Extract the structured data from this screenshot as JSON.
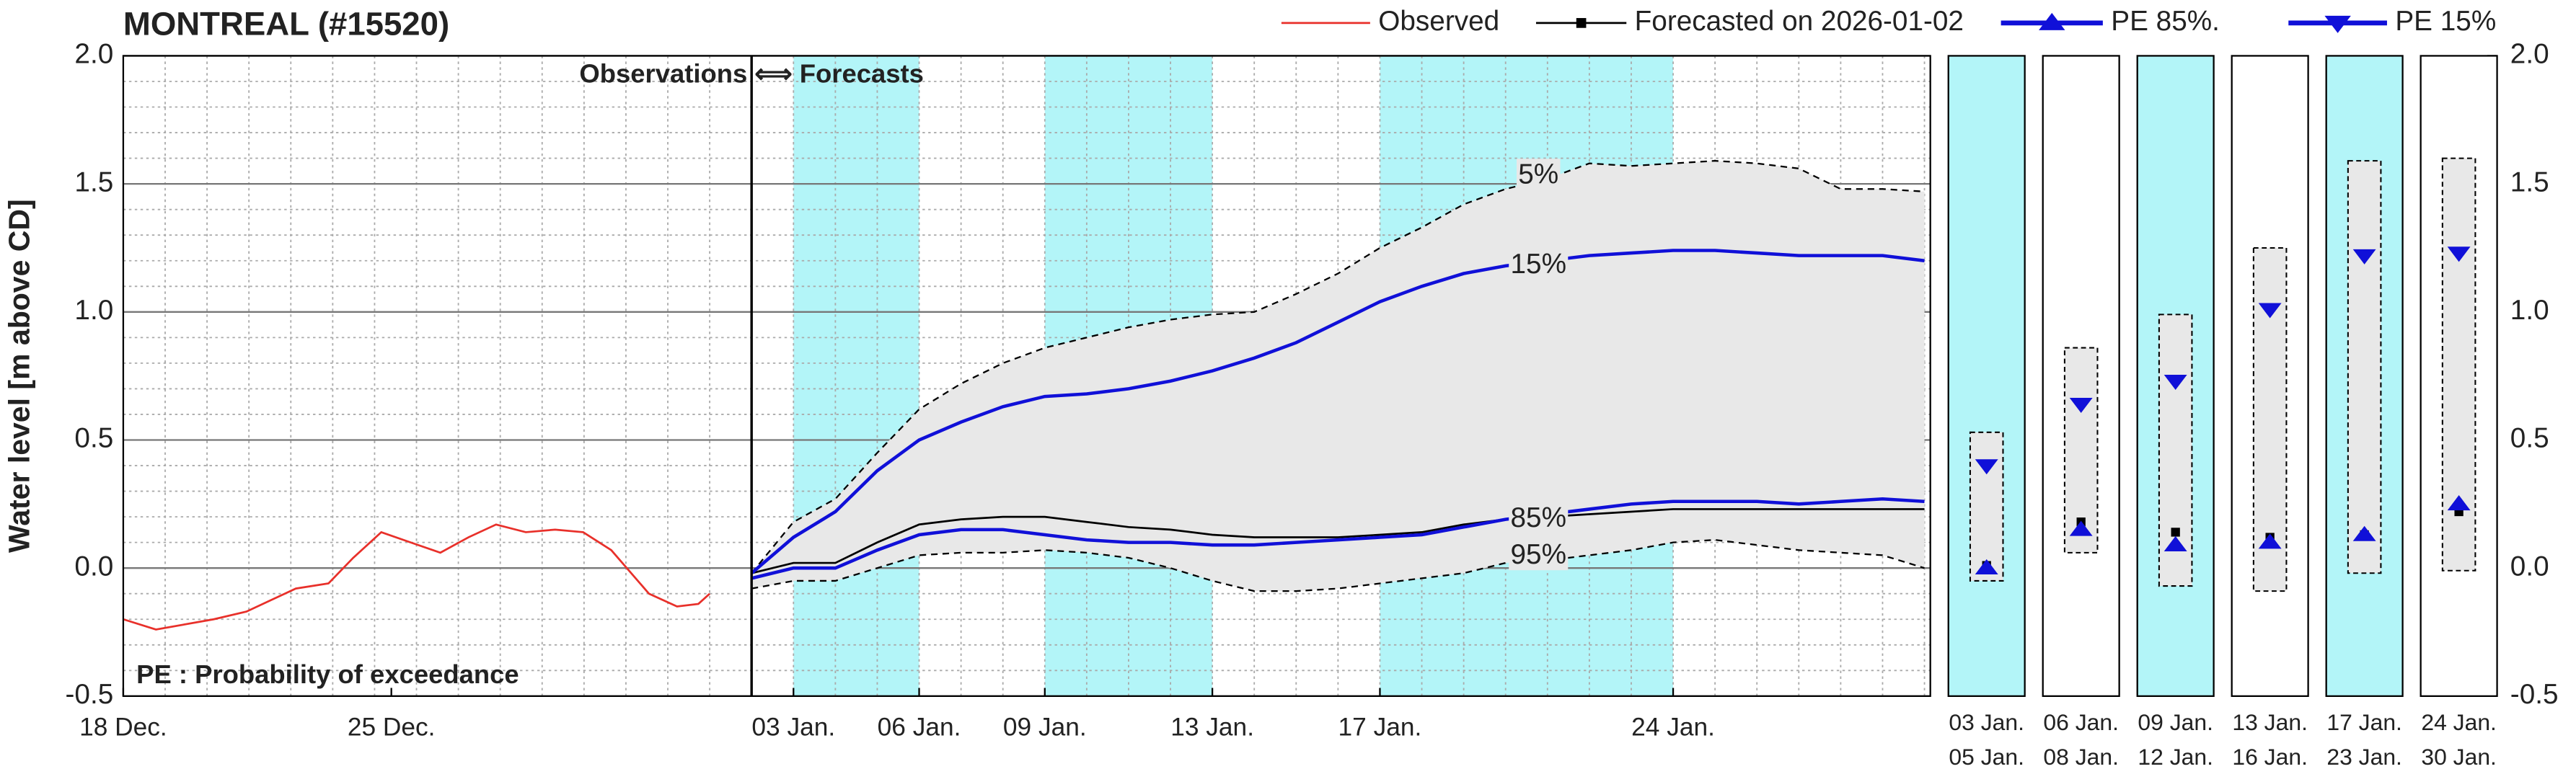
{
  "chart_data": {
    "type": "line",
    "title": "MONTREAL (#15520)",
    "y_label": "Water level [m above CD]",
    "divider_label": "Observations ⟺ Forecasts",
    "note": "PE : Probability of exceedance",
    "divider": 15,
    "xlim": [
      0,
      43.14
    ],
    "xticks": [
      {
        "value": 0,
        "label": "18 Dec."
      },
      {
        "value": 6.4,
        "label": "25 Dec."
      },
      {
        "value": 16,
        "label": "03 Jan."
      },
      {
        "value": 19,
        "label": "06 Jan."
      },
      {
        "value": 22,
        "label": "09 Jan."
      },
      {
        "value": 26,
        "label": "13 Jan."
      },
      {
        "value": 30,
        "label": "17 Jan."
      },
      {
        "value": 37,
        "label": "24 Jan."
      }
    ],
    "ylim": [
      -0.5,
      2.0
    ],
    "yticks": [
      -0.5,
      {
        "value": 0,
        "label": "0.0"
      },
      0.5,
      {
        "value": 1,
        "label": "1.0"
      },
      1.5,
      {
        "value": 2,
        "label": "2.0"
      }
    ],
    "grid": true,
    "shade_color": "#b3f5f8",
    "shaded_periods": [
      [
        16,
        19
      ],
      [
        22,
        26
      ],
      [
        30,
        37
      ]
    ],
    "x": [
      15,
      16,
      17,
      18,
      19,
      20,
      21,
      22,
      23,
      24,
      25,
      26,
      27,
      28,
      29,
      30,
      31,
      32,
      33,
      34,
      35,
      36,
      37,
      38,
      39,
      40,
      41,
      42,
      43
    ],
    "observed": {
      "name": "Observed",
      "color": "#e8302a",
      "x": [
        0,
        0.78,
        2.16,
        2.94,
        4.12,
        4.9,
        5.49,
        6.16,
        6.86,
        7.57,
        8.24,
        8.9,
        9.61,
        10.31,
        10.98,
        11.65,
        12.55,
        13.22,
        13.73,
        14.0
      ],
      "values": [
        -0.2,
        -0.24,
        -0.2,
        -0.17,
        -0.08,
        -0.06,
        0.04,
        0.14,
        0.1,
        0.06,
        0.12,
        0.17,
        0.14,
        0.15,
        0.14,
        0.07,
        -0.1,
        -0.15,
        -0.14,
        -0.1
      ]
    },
    "series": [
      {
        "name": "Forecasted on 2026-01-02",
        "color": "#000000",
        "marker": "square",
        "values": [
          -0.02,
          0.02,
          0.02,
          0.1,
          0.17,
          0.19,
          0.2,
          0.2,
          0.18,
          0.16,
          0.15,
          0.13,
          0.12,
          0.12,
          0.12,
          0.13,
          0.14,
          0.17,
          0.19,
          0.2,
          0.21,
          0.22,
          0.23,
          0.23,
          0.23,
          0.23,
          0.23,
          0.23,
          0.23
        ]
      },
      {
        "name": "PE 85%.",
        "label": "85%",
        "color": "#1010d8",
        "marker": "up",
        "values": [
          -0.04,
          0.0,
          0.0,
          0.07,
          0.13,
          0.15,
          0.15,
          0.13,
          0.11,
          0.1,
          0.1,
          0.09,
          0.09,
          0.1,
          0.11,
          0.12,
          0.13,
          0.16,
          0.19,
          0.21,
          0.23,
          0.25,
          0.26,
          0.26,
          0.26,
          0.25,
          0.26,
          0.27,
          0.26
        ]
      },
      {
        "name": "PE 15%",
        "label": "15%",
        "color": "#1010d8",
        "marker": "down",
        "values": [
          -0.02,
          0.12,
          0.22,
          0.38,
          0.5,
          0.57,
          0.63,
          0.67,
          0.68,
          0.7,
          0.73,
          0.77,
          0.82,
          0.88,
          0.96,
          1.04,
          1.1,
          1.15,
          1.18,
          1.2,
          1.22,
          1.23,
          1.24,
          1.24,
          1.23,
          1.22,
          1.22,
          1.22,
          1.2
        ]
      }
    ],
    "envelope": {
      "fill": "#e8e8e8",
      "upper": {
        "label": "5%",
        "values": [
          -0.02,
          0.18,
          0.27,
          0.45,
          0.62,
          0.72,
          0.8,
          0.86,
          0.9,
          0.94,
          0.97,
          0.99,
          1.0,
          1.07,
          1.15,
          1.25,
          1.33,
          1.42,
          1.48,
          1.52,
          1.58,
          1.57,
          1.58,
          1.59,
          1.58,
          1.56,
          1.48,
          1.48,
          1.47
        ]
      },
      "lower": {
        "label": "95%",
        "values": [
          -0.08,
          -0.05,
          -0.05,
          0.0,
          0.05,
          0.06,
          0.06,
          0.07,
          0.06,
          0.04,
          0.0,
          -0.05,
          -0.09,
          -0.09,
          -0.08,
          -0.06,
          -0.04,
          -0.02,
          0.02,
          0.03,
          0.05,
          0.07,
          0.1,
          0.11,
          0.09,
          0.07,
          0.06,
          0.05,
          0.0
        ]
      }
    },
    "panels": [
      {
        "start": "03 Jan.",
        "end": "05 Jan.",
        "shaded": true,
        "range": [
          -0.05,
          0.53
        ],
        "pe15": 0.4,
        "pe85": 0.0,
        "forecast": 0.01
      },
      {
        "start": "06 Jan.",
        "end": "08 Jan.",
        "shaded": false,
        "range": [
          0.06,
          0.86
        ],
        "pe15": 0.64,
        "pe85": 0.15,
        "forecast": 0.18
      },
      {
        "start": "09 Jan.",
        "end": "12 Jan.",
        "shaded": true,
        "range": [
          -0.07,
          0.99
        ],
        "pe15": 0.73,
        "pe85": 0.09,
        "forecast": 0.14
      },
      {
        "start": "13 Jan.",
        "end": "16 Jan.",
        "shaded": false,
        "range": [
          -0.09,
          1.25
        ],
        "pe15": 1.01,
        "pe85": 0.1,
        "forecast": 0.12
      },
      {
        "start": "17 Jan.",
        "end": "23 Jan.",
        "shaded": true,
        "range": [
          -0.02,
          1.59
        ],
        "pe15": 1.22,
        "pe85": 0.13,
        "forecast": 0.13
      },
      {
        "start": "24 Jan.",
        "end": "30 Jan.",
        "shaded": false,
        "range": [
          -0.01,
          1.6
        ],
        "pe15": 1.23,
        "pe85": 0.25,
        "forecast": 0.22
      }
    ]
  }
}
